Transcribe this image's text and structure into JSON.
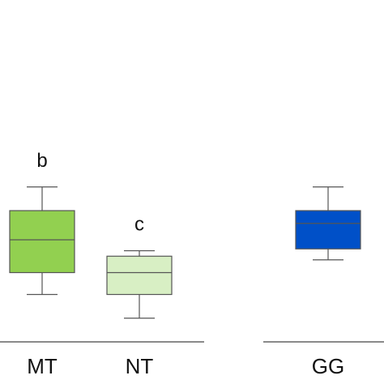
{
  "chart_data": {
    "type": "boxplot",
    "title": "",
    "xlabel": "",
    "ylabel": "",
    "grid": false,
    "ylim": [
      0,
      22
    ],
    "categories": [
      "MT",
      "NT",
      "GG"
    ],
    "boxes": [
      {
        "label": "MT",
        "group": 0,
        "whisker_low": 2.6,
        "q1": 3.8,
        "median": 5.6,
        "q3": 7.2,
        "whisker_high": 8.5,
        "letter": "b",
        "color": "#92d050"
      },
      {
        "label": "NT",
        "group": 0,
        "whisker_low": 1.3,
        "q1": 2.6,
        "median": 3.8,
        "q3": 4.7,
        "whisker_high": 5.0,
        "letter": "c",
        "color": "#d8efc4"
      },
      {
        "label": "GG",
        "group": 1,
        "whisker_low": 4.5,
        "q1": 5.1,
        "median": 6.5,
        "q3": 7.2,
        "whisker_high": 8.5,
        "letter": "",
        "color": "#0050c8"
      }
    ]
  }
}
